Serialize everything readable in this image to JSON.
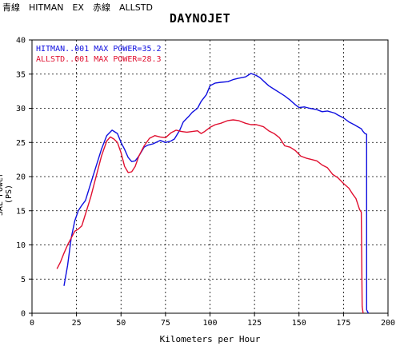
{
  "caption": "青線　HITMAN　EX　赤線　ALLSTD",
  "chart_data": {
    "type": "line",
    "title": "DAYNOJET",
    "xlabel": "Kilometers per Hour",
    "ylabel": "SAE Power (PS)",
    "xlim": [
      0,
      200
    ],
    "ylim": [
      0,
      40
    ],
    "xticks": [
      0,
      25,
      50,
      75,
      100,
      125,
      150,
      175,
      200
    ],
    "yticks": [
      0,
      5,
      10,
      15,
      20,
      25,
      30,
      35,
      40
    ],
    "grid": true,
    "legend_position": "top-left",
    "series": [
      {
        "name": "HITMAN..001  MAX POWER=35.2",
        "color": "#1010e0",
        "x": [
          18,
          20,
          22,
          24,
          26,
          28,
          30,
          33,
          36,
          39,
          42,
          45,
          48,
          50,
          52,
          54,
          56,
          58,
          60,
          63,
          65,
          68,
          72,
          75,
          78,
          80,
          83,
          85,
          88,
          90,
          93,
          95,
          98,
          100,
          103,
          106,
          110,
          113,
          116,
          120,
          123,
          126,
          128,
          130,
          133,
          136,
          139,
          142,
          145,
          148,
          150,
          153,
          156,
          160,
          163,
          166,
          170,
          172,
          175,
          178,
          181,
          183,
          185,
          186,
          187,
          188,
          188,
          189
        ],
        "y": [
          4,
          7,
          11,
          13.5,
          15,
          15.8,
          16.5,
          19,
          21.5,
          24,
          26,
          26.8,
          26.3,
          25,
          24,
          22.8,
          22.2,
          22.3,
          23,
          24.3,
          24.6,
          24.8,
          25.3,
          25,
          25.2,
          25.5,
          26.8,
          28,
          28.8,
          29.4,
          30,
          31,
          32,
          33.3,
          33.7,
          33.8,
          33.9,
          34.2,
          34.4,
          34.6,
          35.1,
          34.8,
          34.5,
          34,
          33.3,
          32.8,
          32.3,
          31.8,
          31.2,
          30.5,
          30.1,
          30.2,
          30.0,
          29.8,
          29.5,
          29.6,
          29.3,
          29.0,
          28.6,
          28.0,
          27.6,
          27.3,
          27.0,
          26.6,
          26.3,
          26.2,
          0.5,
          0
        ]
      },
      {
        "name": "ALLSTD..001  MAX POWER=28.3",
        "color": "#e01030",
        "x": [
          14,
          16,
          18,
          20,
          22,
          24,
          26,
          28,
          30,
          33,
          36,
          39,
          42,
          44,
          46,
          48,
          50,
          52,
          54,
          56,
          58,
          60,
          63,
          66,
          69,
          72,
          75,
          78,
          81,
          84,
          87,
          90,
          93,
          95,
          97,
          100,
          103,
          106,
          110,
          113,
          116,
          120,
          123,
          126,
          130,
          133,
          136,
          139,
          142,
          145,
          148,
          151,
          154,
          157,
          160,
          163,
          166,
          169,
          172,
          175,
          178,
          180,
          182,
          184,
          185,
          185.5,
          186
        ],
        "y": [
          6.5,
          7.5,
          8.8,
          10,
          11,
          12,
          12.3,
          12.8,
          14.5,
          17,
          20,
          23,
          25.2,
          25.8,
          25.5,
          25,
          23.5,
          21.5,
          20.6,
          20.7,
          21.5,
          23,
          24.5,
          25.6,
          26,
          25.8,
          25.7,
          26.4,
          26.8,
          26.6,
          26.5,
          26.6,
          26.7,
          26.3,
          26.6,
          27.2,
          27.6,
          27.8,
          28.2,
          28.3,
          28.2,
          27.8,
          27.6,
          27.6,
          27.3,
          26.7,
          26.3,
          25.7,
          24.5,
          24.3,
          23.8,
          23.0,
          22.7,
          22.5,
          22.3,
          21.7,
          21.3,
          20.3,
          19.8,
          19.0,
          18.3,
          17.5,
          16.8,
          15.2,
          14.8,
          1,
          0
        ]
      }
    ]
  }
}
